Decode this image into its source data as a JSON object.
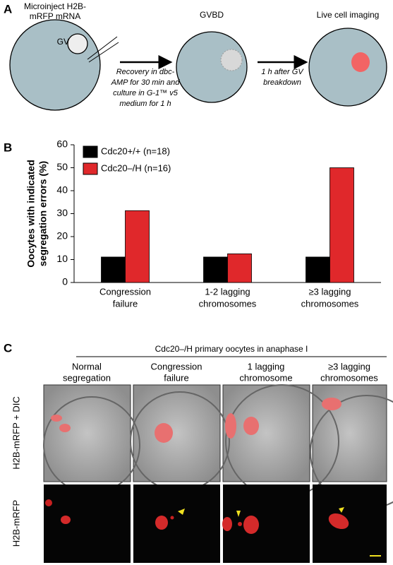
{
  "panel_a": {
    "label": "A",
    "step1_label": [
      "Microinject H2B-",
      "mRFP mRNA"
    ],
    "gv": "GV",
    "arrow1": [
      "Recovery in dbc-",
      "AMP for 30 min and",
      "culture in G-1™ v5",
      "medium for 1 h"
    ],
    "step2_label": "GVBD",
    "arrow2": [
      "1 h after GV",
      "breakdown"
    ],
    "step3_label": "Live cell imaging"
  },
  "panel_b": {
    "label": "B"
  },
  "chart_data": {
    "type": "bar",
    "y_label": [
      "Oocytes with indicated",
      "segregation errors (%)"
    ],
    "categories": [
      [
        "Congression",
        "failure"
      ],
      [
        "1-2 lagging",
        "chromosomes"
      ],
      [
        "≥3 lagging",
        "chromosomes"
      ]
    ],
    "series": [
      {
        "name": "Cdc20+/+ (n=18)",
        "color": "#000000",
        "values": [
          11.1,
          11.1,
          11.1
        ]
      },
      {
        "name": "Cdc20–/H (n=16)",
        "color": "#e0282b",
        "values": [
          31.3,
          12.5,
          50
        ]
      }
    ],
    "ylim": [
      0,
      60
    ],
    "yticks": [
      0,
      10,
      20,
      30,
      40,
      50,
      60
    ],
    "legend": "upper left"
  },
  "panel_c": {
    "label": "C",
    "title": "Cdc20–/H primary oocytes in anaphase I",
    "columns": [
      [
        "Normal",
        "segregation"
      ],
      [
        "Congression",
        "failure"
      ],
      [
        "1 lagging",
        "chromosome"
      ],
      [
        "≥3 lagging",
        "chromosomes"
      ]
    ],
    "rows": [
      "H2B-mRFP + DIC",
      "H2B-mRFP"
    ]
  }
}
